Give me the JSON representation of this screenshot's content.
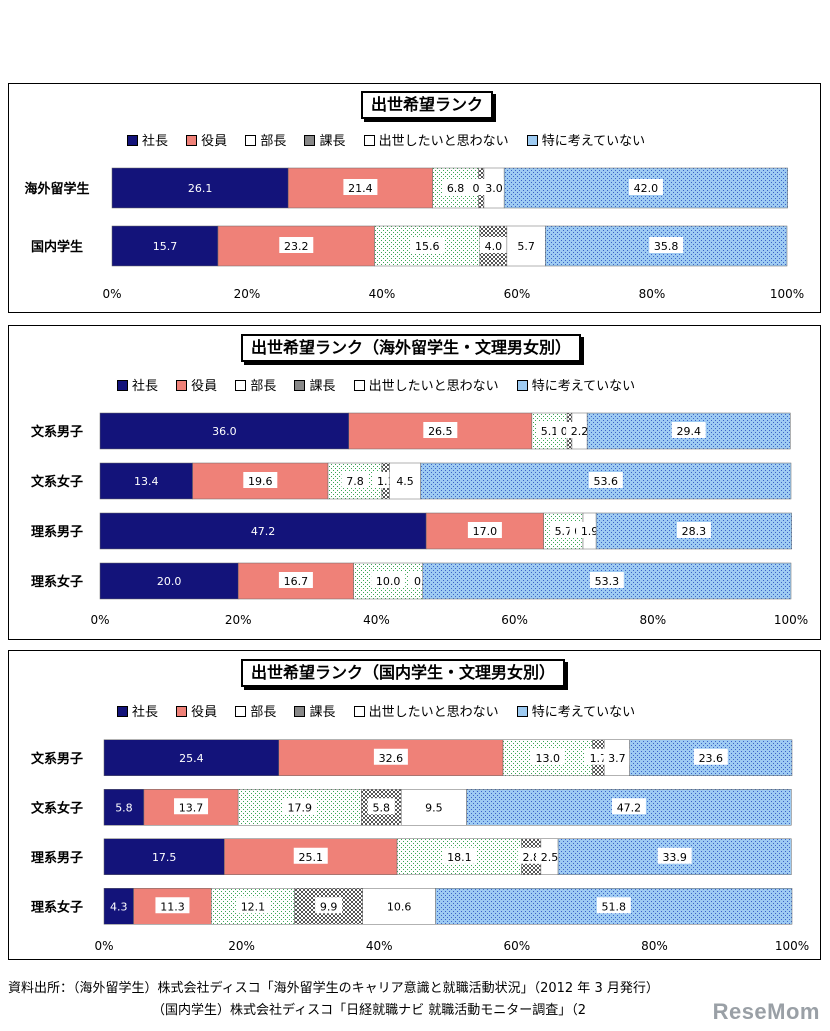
{
  "colors": {
    "社長": "#13137a",
    "役員": "#ef8178",
    "部長": "#ffffff",
    "課長": "#888888",
    "出世したいと思わない": "#ffffff",
    "特に考えていない": "#9ecbf2"
  },
  "chart_data": [
    {
      "type": "bar",
      "orientation": "horizontal",
      "stacked": true,
      "title": "出世希望ランク",
      "legend_position": "top",
      "series_names": [
        "社長",
        "役員",
        "部長",
        "課長",
        "出世したいと思わない",
        "特に考えていない"
      ],
      "series_patterns": [
        "solid",
        "solid",
        "dots-green",
        "checker",
        "solid",
        "dots-blue"
      ],
      "categories": [
        "海外留学生",
        "国内学生"
      ],
      "values": [
        [
          26.1,
          21.4,
          6.8,
          0.8,
          3.0,
          42.0
        ],
        [
          15.7,
          23.2,
          15.6,
          4.0,
          5.7,
          35.8
        ]
      ],
      "labels": [
        [
          "26.1",
          "21.4",
          "6.8",
          "0.8",
          "3.0",
          "42.0"
        ],
        [
          "15.7",
          "23.2",
          "15.6",
          "4.0",
          "5.7",
          "35.8"
        ]
      ],
      "xticks": [
        "0%",
        "20%",
        "40%",
        "60%",
        "80%",
        "100%"
      ],
      "xlim": [
        0,
        100
      ]
    },
    {
      "type": "bar",
      "orientation": "horizontal",
      "stacked": true,
      "title": "出世希望ランク（海外留学生・文理男女別）",
      "legend_position": "top",
      "series_names": [
        "社長",
        "役員",
        "部長",
        "課長",
        "出世したいと思わない",
        "特に考えていない"
      ],
      "series_patterns": [
        "solid",
        "solid",
        "dots-green",
        "checker",
        "solid",
        "dots-blue"
      ],
      "categories": [
        "文系男子",
        "文系女子",
        "理系男子",
        "理系女子"
      ],
      "values": [
        [
          36.0,
          26.5,
          5.1,
          0.7,
          2.2,
          29.4
        ],
        [
          13.4,
          19.6,
          7.8,
          1.1,
          4.5,
          53.6
        ],
        [
          47.2,
          17.0,
          5.7,
          0.0,
          1.9,
          28.3
        ],
        [
          20.0,
          16.7,
          10.0,
          0.0,
          0.0,
          53.3
        ]
      ],
      "labels": [
        [
          "36.0",
          "26.5",
          "5.1",
          "0.7",
          "2.2",
          "29.4"
        ],
        [
          "13.4",
          "19.6",
          "7.8",
          "1.1",
          "4.5",
          "53.6"
        ],
        [
          "47.2",
          "17.0",
          "5.7",
          "0.0",
          "1.9",
          "28.3"
        ],
        [
          "20.0",
          "16.7",
          "10.0",
          "0.0",
          "0.0",
          "53.3"
        ]
      ],
      "xticks": [
        "0%",
        "20%",
        "40%",
        "60%",
        "80%",
        "100%"
      ],
      "xlim": [
        0,
        100
      ]
    },
    {
      "type": "bar",
      "orientation": "horizontal",
      "stacked": true,
      "title": "出世希望ランク（国内学生・文理男女別）",
      "legend_position": "top",
      "series_names": [
        "社長",
        "役員",
        "部長",
        "課長",
        "出世したいと思わない",
        "特に考えていない"
      ],
      "series_patterns": [
        "solid",
        "solid",
        "dots-green",
        "checker",
        "solid",
        "dots-blue"
      ],
      "categories": [
        "文系男子",
        "文系女子",
        "理系男子",
        "理系女子"
      ],
      "values": [
        [
          25.4,
          32.6,
          13.0,
          1.7,
          3.7,
          23.6
        ],
        [
          5.8,
          13.7,
          17.9,
          5.8,
          9.5,
          47.2
        ],
        [
          17.5,
          25.1,
          18.1,
          2.8,
          2.5,
          33.9
        ],
        [
          4.3,
          11.3,
          12.1,
          9.9,
          10.6,
          51.8
        ]
      ],
      "labels": [
        [
          "25.4",
          "32.6",
          "13.0",
          "1.7",
          "3.7",
          "23.6"
        ],
        [
          "5.8",
          "13.7",
          "17.9",
          "5.8",
          "9.5",
          "47.2"
        ],
        [
          "17.5",
          "25.1",
          "18.1",
          "2.8",
          "2.5",
          "33.9"
        ],
        [
          "4.3",
          "11.3",
          "12.1",
          "9.9",
          "10.6",
          "51.8"
        ]
      ],
      "xticks": [
        "0%",
        "20%",
        "40%",
        "60%",
        "80%",
        "100%"
      ],
      "xlim": [
        0,
        100
      ]
    }
  ],
  "source": {
    "line1": "資料出所：（海外留学生）株式会社ディスコ「海外留学生のキャリア意識と就職活動状況」（2012 年 3 月発行）",
    "line2": "（国内学生）株式会社ディスコ「日経就職ナビ 就職活動モニター調査」（2"
  },
  "watermark": "ReseMom"
}
